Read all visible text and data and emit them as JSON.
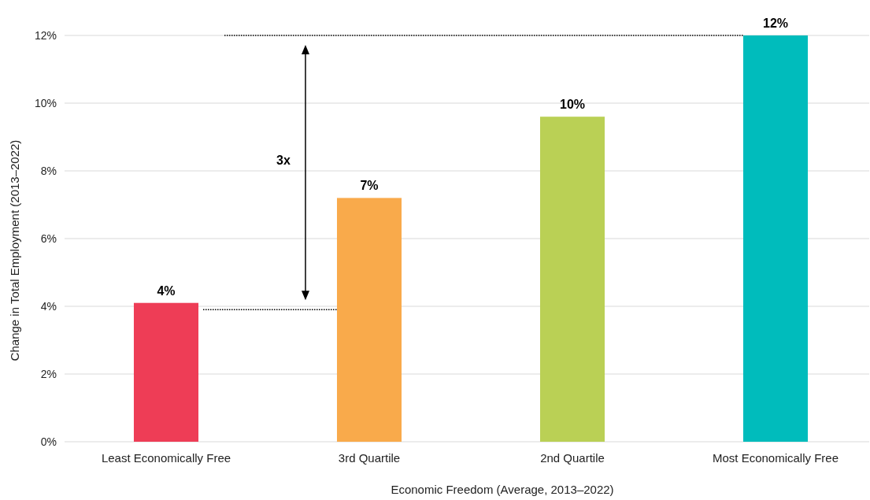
{
  "chart_data": {
    "type": "bar",
    "xlabel": "Economic Freedom (Average, 2013–2022)",
    "ylabel": "Change in Total Employment (2013–2022)",
    "categories": [
      "Least Economically Free",
      "3rd Quartile",
      "2nd Quartile",
      "Most Economically Free"
    ],
    "values": [
      4.1,
      7.2,
      9.6,
      12.0
    ],
    "colors": [
      "#ee3d56",
      "#f9aa4b",
      "#bad055",
      "#00bcbc"
    ],
    "value_labels": [
      "4%",
      "7%",
      "10%",
      "12%"
    ],
    "ylim": [
      0,
      12
    ],
    "ref_lines": [
      {
        "axis": "y",
        "value": 3.9,
        "line_style": "dotted",
        "color": "#000000"
      },
      {
        "axis": "y",
        "value": 12,
        "line_style": "dotted",
        "color": "#000000"
      }
    ],
    "yticks": [
      {
        "value": 0,
        "label": "0%"
      },
      {
        "value": 2,
        "label": "2%"
      },
      {
        "value": 4,
        "label": "4%"
      },
      {
        "value": 6,
        "label": "6%"
      },
      {
        "value": 8,
        "label": "8%"
      },
      {
        "value": 10,
        "label": "10%"
      },
      {
        "value": 12,
        "label": "12%"
      }
    ],
    "grid": "y",
    "annotations": [
      "3x"
    ]
  }
}
